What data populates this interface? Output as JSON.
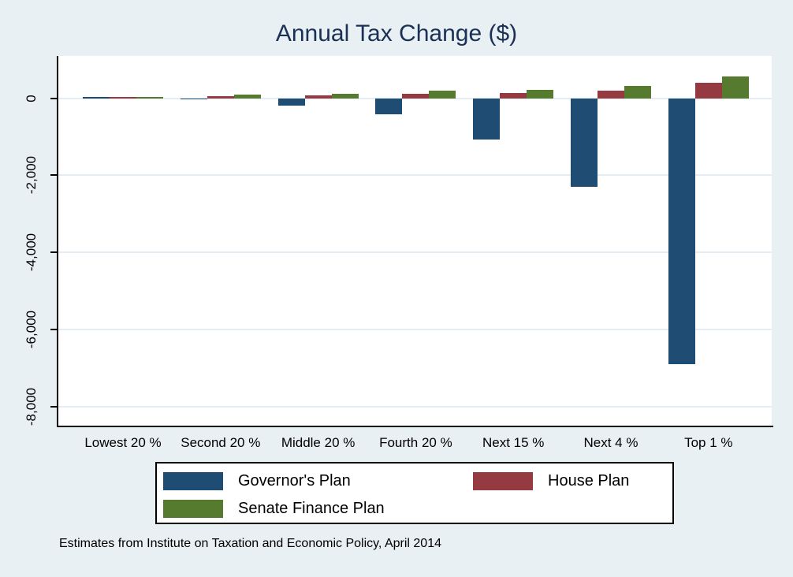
{
  "page": {
    "background_color": "#e8f0f3",
    "plot_background": "#ffffff",
    "gridline_color": "#e4edf3",
    "axis_color": "#000000"
  },
  "chart_data": {
    "type": "bar",
    "title": "Annual Tax Change ($)",
    "title_color": "#1b3055",
    "categories": [
      "Lowest 20 %",
      "Second 20 %",
      "Middle 20 %",
      "Fourth 20 %",
      "Next 15 %",
      "Next 4 %",
      "Top 1 %"
    ],
    "series": [
      {
        "name": "Governor's Plan",
        "color": "#1e4c72",
        "values": [
          40,
          -20,
          -180,
          -410,
          -1060,
          -2290,
          -6910
        ]
      },
      {
        "name": "House Plan",
        "color": "#943a40",
        "values": [
          40,
          50,
          70,
          110,
          135,
          195,
          400
        ]
      },
      {
        "name": "Senate Finance Plan",
        "color": "#567a2e",
        "values": [
          45,
          90,
          120,
          190,
          225,
          315,
          570
        ]
      }
    ],
    "xlabel": "",
    "ylabel": "",
    "yticks": [
      0,
      -2000,
      -4000,
      -6000,
      -8000
    ],
    "ytick_labels": [
      "0",
      "-2,000",
      "-4,000",
      "-6,000",
      "-8,000"
    ],
    "ylim": [
      -8500,
      1100
    ],
    "grid": true,
    "legend_position": "bottom",
    "note": "Estimates from Institute on Taxation and Economic Policy, April 2014"
  }
}
